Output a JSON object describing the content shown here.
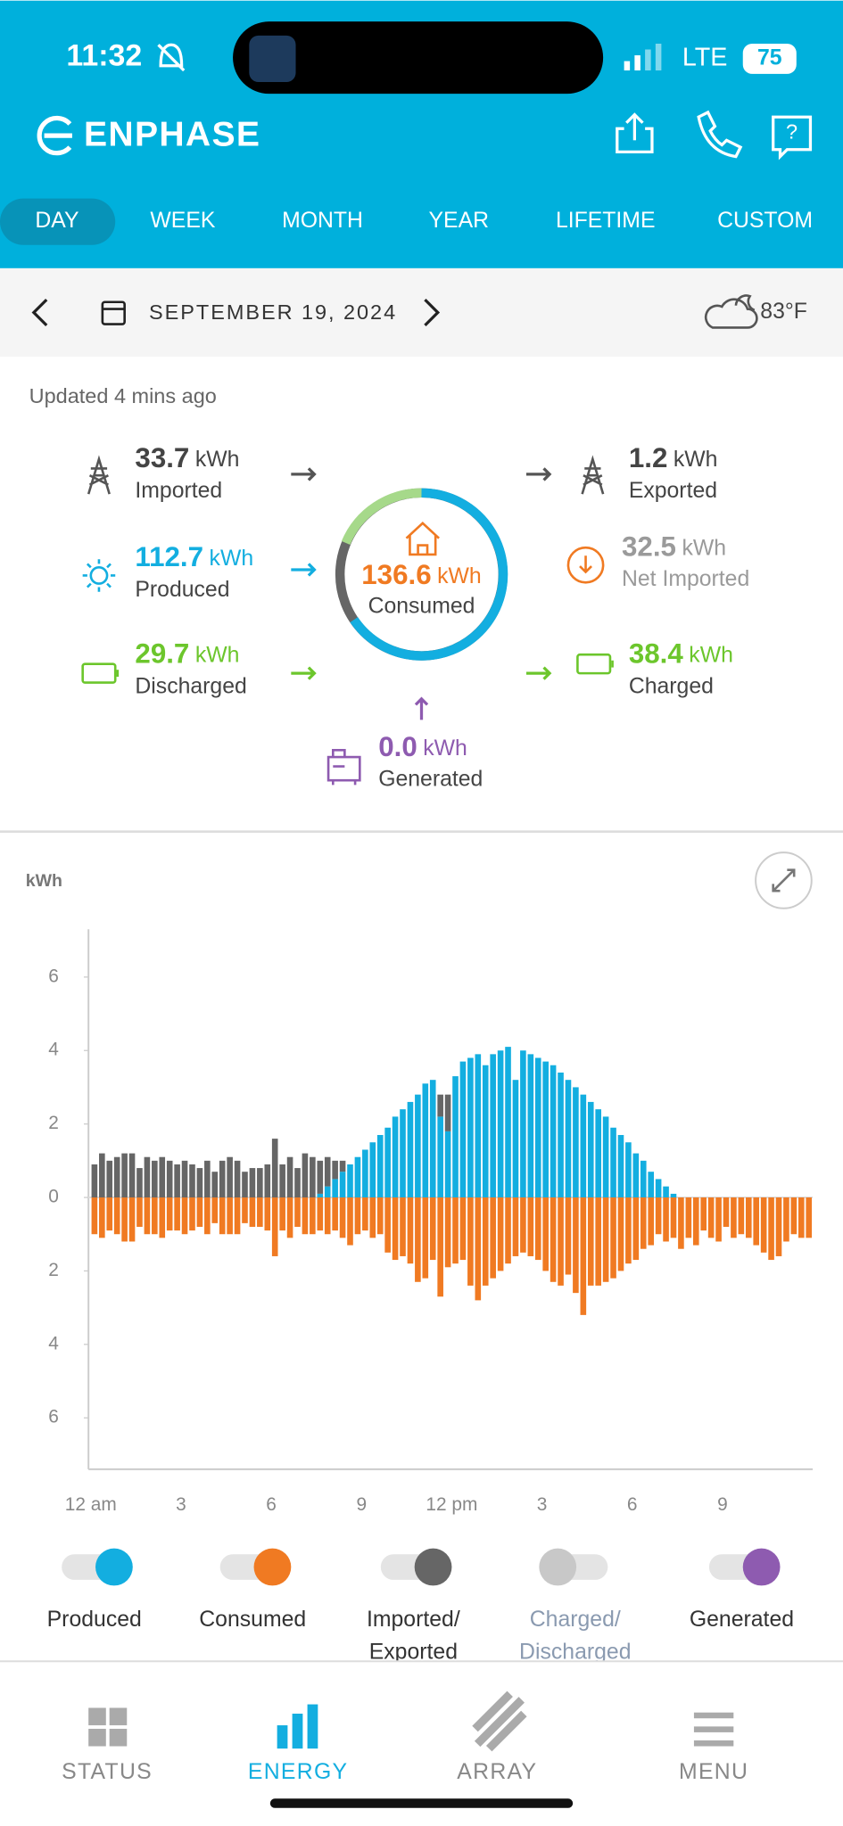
{
  "status_bar": {
    "time": "11:32",
    "network": "LTE",
    "battery": "75"
  },
  "header": {
    "brand": "ENPHASE"
  },
  "tabs": [
    "DAY",
    "WEEK",
    "MONTH",
    "YEAR",
    "LIFETIME",
    "CUSTOM"
  ],
  "date_bar": {
    "date": "SEPTEMBER 19, 2024",
    "weather": "83°F"
  },
  "summary": {
    "updated": "Updated 4 mins ago",
    "consumed": {
      "value": "136.6",
      "unit": "kWh",
      "label": "Consumed",
      "color": "#f07a22"
    },
    "flows": [
      {
        "value": "33.7",
        "unit": "kWh",
        "label": "Imported",
        "color": "#444444"
      },
      {
        "value": "112.7",
        "unit": "kWh",
        "label": "Produced",
        "color": "#13aee0"
      },
      {
        "value": "29.7",
        "unit": "kWh",
        "label": "Discharged",
        "color": "#6cc62c"
      },
      {
        "value": "1.2",
        "unit": "kWh",
        "label": "Exported",
        "color": "#444444"
      },
      {
        "value": "32.5",
        "unit": "kWh",
        "label": "Net Imported",
        "color": "#9a9a9a"
      },
      {
        "value": "38.4",
        "unit": "kWh",
        "label": "Charged",
        "color": "#6cc62c"
      },
      {
        "value": "0.0",
        "unit": "kWh",
        "label": "Generated",
        "color": "#8e5bb0"
      }
    ]
  },
  "chart_data": {
    "type": "bar",
    "y_label": "kWh",
    "stacked": true,
    "grid": false,
    "ylim": [
      -7.4,
      7.3
    ],
    "yticks": [
      {
        "value": -6,
        "label": "6"
      },
      {
        "value": -4,
        "label": "4"
      },
      {
        "value": -2,
        "label": "2"
      },
      0,
      2,
      4,
      6
    ],
    "categories": [
      "12 am",
      null,
      null,
      null,
      null,
      null,
      null,
      null,
      null,
      null,
      null,
      null,
      "3",
      null,
      null,
      null,
      null,
      null,
      null,
      null,
      null,
      null,
      null,
      null,
      "6",
      null,
      null,
      null,
      null,
      null,
      null,
      null,
      null,
      null,
      null,
      null,
      "9",
      null,
      null,
      null,
      null,
      null,
      null,
      null,
      null,
      null,
      null,
      null,
      "12 pm",
      null,
      null,
      null,
      null,
      null,
      null,
      null,
      null,
      null,
      null,
      null,
      "3",
      null,
      null,
      null,
      null,
      null,
      null,
      null,
      null,
      null,
      null,
      null,
      "6",
      null,
      null,
      null,
      null,
      null,
      null,
      null,
      null,
      null,
      null,
      null,
      "9",
      null,
      null,
      null,
      null,
      null,
      null,
      null,
      null,
      null,
      null,
      null
    ],
    "series": [
      {
        "name": "Produced",
        "color": "#13aee0",
        "values": [
          0,
          0,
          0,
          0,
          0,
          0,
          0,
          0,
          0,
          0,
          0,
          0,
          0,
          0,
          0,
          0,
          0,
          0,
          0,
          0,
          0,
          0,
          0,
          0,
          0,
          0,
          0,
          0,
          0,
          0,
          0.1,
          0.3,
          0.5,
          0.7,
          0.9,
          1.1,
          1.3,
          1.5,
          1.7,
          1.9,
          2.2,
          2.4,
          2.6,
          2.8,
          3.1,
          3.2,
          2.2,
          1.8,
          3.3,
          3.7,
          3.8,
          3.9,
          3.6,
          3.9,
          4.0,
          4.1,
          3.2,
          4.0,
          3.9,
          3.8,
          3.7,
          3.6,
          3.4,
          3.2,
          3.0,
          2.8,
          2.6,
          2.4,
          2.2,
          1.9,
          1.7,
          1.5,
          1.2,
          1.0,
          0.7,
          0.5,
          0.3,
          0.1,
          0,
          0,
          0,
          0,
          0,
          0,
          0,
          0,
          0,
          0,
          0,
          0,
          0,
          0,
          0,
          0,
          0,
          0
        ]
      },
      {
        "name": "Consumed",
        "color": "#f07a22",
        "values": [
          -1.0,
          -1.1,
          -0.9,
          -1.0,
          -1.2,
          -1.2,
          -0.8,
          -1.0,
          -1.0,
          -1.1,
          -0.9,
          -0.9,
          -1.0,
          -0.9,
          -0.8,
          -1.0,
          -0.7,
          -1.0,
          -1.0,
          -1.0,
          -0.7,
          -0.8,
          -0.8,
          -0.9,
          -1.6,
          -0.9,
          -1.1,
          -0.8,
          -1.0,
          -1.0,
          -0.9,
          -1.0,
          -0.9,
          -1.1,
          -1.3,
          -1.0,
          -0.9,
          -1.1,
          -1.0,
          -1.5,
          -1.7,
          -1.6,
          -1.8,
          -2.3,
          -2.2,
          -1.7,
          -2.7,
          -1.9,
          -1.8,
          -1.7,
          -2.4,
          -2.8,
          -2.4,
          -2.2,
          -2.0,
          -1.8,
          -1.6,
          -1.5,
          -1.6,
          -1.7,
          -2.0,
          -2.3,
          -2.4,
          -2.1,
          -2.6,
          -3.2,
          -2.4,
          -2.4,
          -2.3,
          -2.2,
          -2.0,
          -1.8,
          -1.7,
          -1.4,
          -1.3,
          -1.0,
          -1.2,
          -1.1,
          -1.4,
          -1.1,
          -1.3,
          -0.9,
          -1.1,
          -1.2,
          -0.8,
          -1.1,
          -1.0,
          -1.1,
          -1.3,
          -1.5,
          -1.7,
          -1.6,
          -1.2,
          -1.0,
          -1.1,
          -1.1
        ]
      },
      {
        "name": "Imported/ Exported",
        "color": "#666666",
        "stack_on": 0,
        "values": [
          0.9,
          1.2,
          1.0,
          1.1,
          1.2,
          1.2,
          0.8,
          1.1,
          1.0,
          1.1,
          1.0,
          0.9,
          1.0,
          0.9,
          0.8,
          1.0,
          0.7,
          1.0,
          1.1,
          1.0,
          0.7,
          0.8,
          0.8,
          0.9,
          1.6,
          0.9,
          1.1,
          0.8,
          1.2,
          1.1,
          0.9,
          0.8,
          0.5,
          0.3,
          0,
          0,
          0,
          0,
          0,
          0,
          0,
          0,
          0,
          0,
          0,
          0,
          0.6,
          1.0,
          0,
          0,
          0,
          0,
          0,
          0,
          0,
          0,
          0,
          0,
          0,
          0,
          0,
          0,
          0,
          0,
          0,
          0,
          0,
          0,
          0,
          0,
          0,
          0,
          0,
          0,
          0,
          0,
          0,
          0,
          0,
          0,
          0,
          0,
          0,
          0,
          0,
          0,
          0,
          0,
          0,
          0,
          0,
          0,
          0,
          0,
          0,
          0
        ]
      }
    ]
  },
  "extra_toggles": [
    {
      "name": "Charged/ Discharged",
      "color": "#c8c8c8",
      "enabled": false
    },
    {
      "name": "Generated",
      "color": "#8e5bb0",
      "enabled": true
    }
  ],
  "nav": [
    "STATUS",
    "ENERGY",
    "ARRAY",
    "MENU"
  ]
}
